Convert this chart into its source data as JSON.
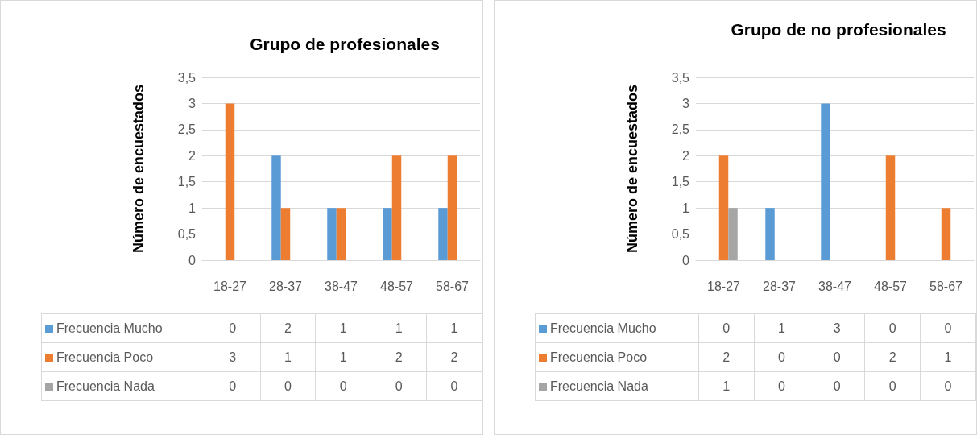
{
  "chart_data": [
    {
      "type": "bar",
      "title": "Grupo de profesionales",
      "ylabel": "Número de encuestados",
      "categories": [
        "18-27",
        "28-37",
        "38-47",
        "48-57",
        "58-67"
      ],
      "series": [
        {
          "name": "Frecuencia Mucho",
          "color": "#5b9bd5",
          "values": [
            0,
            2,
            1,
            1,
            1
          ]
        },
        {
          "name": "Frecuencia Poco",
          "color": "#ed7d31",
          "values": [
            3,
            1,
            1,
            2,
            2
          ]
        },
        {
          "name": "Frecuencia Nada",
          "color": "#a5a5a5",
          "values": [
            0,
            0,
            0,
            0,
            0
          ]
        }
      ],
      "ylim": [
        0,
        3.5
      ],
      "yticks": [
        {
          "value": 0,
          "label": "0"
        },
        {
          "value": 0.5,
          "label": "0,5"
        },
        {
          "value": 1,
          "label": "1"
        },
        {
          "value": 1.5,
          "label": "1,5"
        },
        {
          "value": 2,
          "label": "2"
        },
        {
          "value": 2.5,
          "label": "2,5"
        },
        {
          "value": 3,
          "label": "3"
        },
        {
          "value": 3.5,
          "label": "3,5"
        }
      ],
      "grid": "y",
      "legend": "bottom",
      "data_labels": true
    },
    {
      "type": "bar",
      "title": "Grupo de no profesionales",
      "ylabel": "Número de encuestados",
      "categories": [
        "18-27",
        "28-37",
        "38-47",
        "48-57",
        "58-67"
      ],
      "series": [
        {
          "name": "Frecuencia Mucho",
          "color": "#5b9bd5",
          "values": [
            0,
            1,
            3,
            0,
            0
          ]
        },
        {
          "name": "Frecuencia Poco",
          "color": "#ed7d31",
          "values": [
            2,
            0,
            0,
            2,
            1
          ]
        },
        {
          "name": "Frecuencia Nada",
          "color": "#a5a5a5",
          "values": [
            1,
            0,
            0,
            0,
            0
          ]
        }
      ],
      "ylim": [
        0,
        3.5
      ],
      "yticks": [
        {
          "value": 0,
          "label": "0"
        },
        {
          "value": 0.5,
          "label": "0,5"
        },
        {
          "value": 1,
          "label": "1"
        },
        {
          "value": 1.5,
          "label": "1,5"
        },
        {
          "value": 2,
          "label": "2"
        },
        {
          "value": 2.5,
          "label": "2,5"
        },
        {
          "value": 3,
          "label": "3"
        },
        {
          "value": 3.5,
          "label": "3,5"
        }
      ],
      "grid": "y",
      "legend": "bottom",
      "data_labels": true
    }
  ]
}
